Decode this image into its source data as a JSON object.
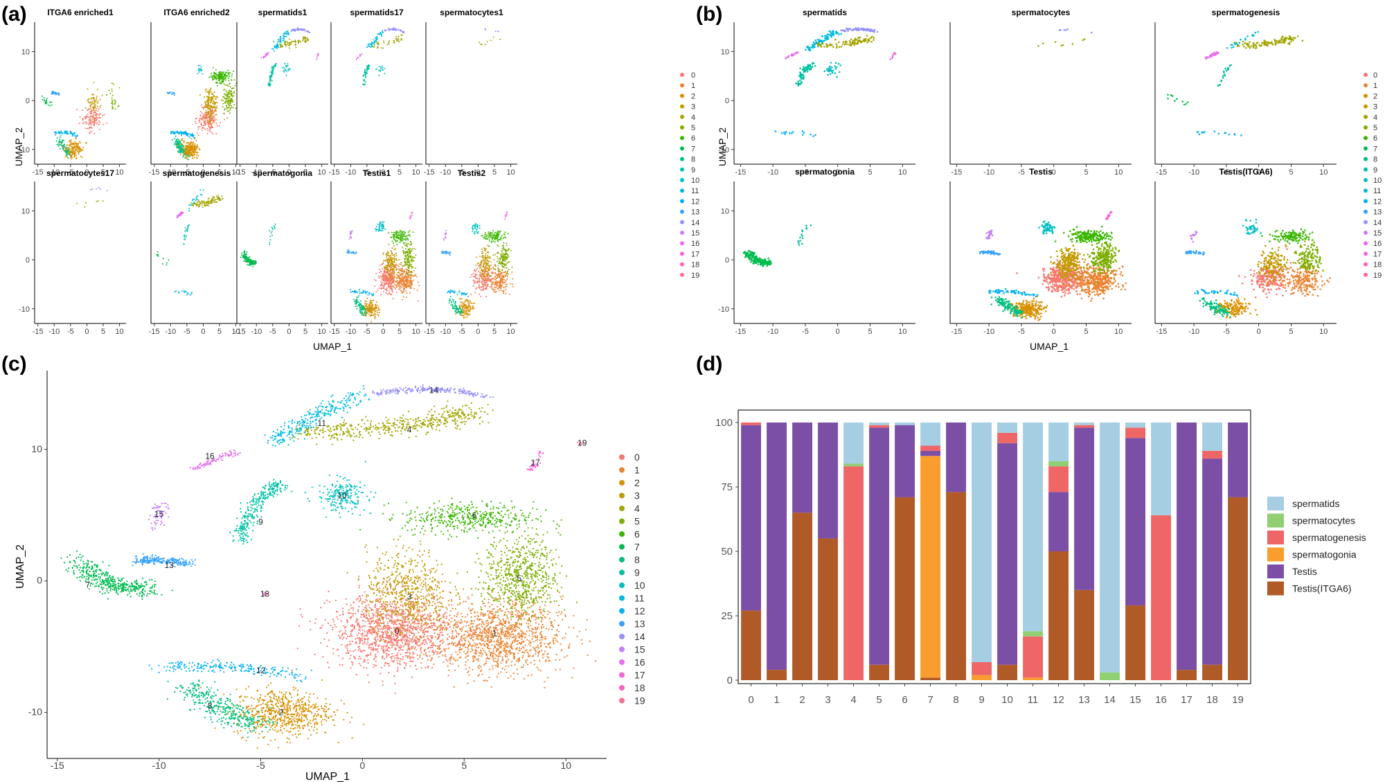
{
  "panels": {
    "a": {
      "label": "(a)",
      "xlabel": "UMAP_1",
      "ylabel": "UMAP_2",
      "facets": [
        "ITGA6 enriched1",
        "ITGA6 enriched2",
        "spermatids1",
        "spermatids17",
        "spermatocytes1",
        "spermatocytes17",
        "spermatogenesis",
        "spermatogonia",
        "Testis1",
        "Testis2"
      ]
    },
    "b": {
      "label": "(b)",
      "xlabel": "UMAP_1",
      "ylabel": "UMAP_2",
      "facets": [
        "spermatids",
        "spermatocytes",
        "spermatogenesis",
        "spermatogonia",
        "Testis",
        "Testis(ITGA6)"
      ]
    },
    "c": {
      "label": "(c)",
      "xlabel": "UMAP_1",
      "ylabel": "UMAP_2"
    },
    "d": {
      "label": "(d)"
    }
  },
  "umap_axes": {
    "x_ticks": [
      "-15",
      "-10",
      "-5",
      "0",
      "5",
      "10"
    ],
    "x_tick_values": [
      -15,
      -10,
      -5,
      0,
      5,
      10
    ],
    "y_ticks_small": [
      "10",
      "0",
      "-10"
    ],
    "y_tick_values_small": [
      10,
      0,
      -10
    ],
    "y_ticks_c": [
      "10",
      "0",
      "-10"
    ],
    "xlim": [
      -16,
      12
    ],
    "ylim": [
      -13,
      16
    ]
  },
  "clusters": {
    "ids": [
      "0",
      "1",
      "2",
      "3",
      "4",
      "5",
      "6",
      "7",
      "8",
      "9",
      "10",
      "11",
      "12",
      "13",
      "14",
      "15",
      "16",
      "17",
      "18",
      "19"
    ],
    "colors": [
      "#F8766D",
      "#EA8331",
      "#D89000",
      "#C09B00",
      "#A3A500",
      "#7CAE00",
      "#39B600",
      "#00BB4E",
      "#00BF7D",
      "#00C1A3",
      "#00BFC4",
      "#00BAE0",
      "#00B0F6",
      "#35A2FF",
      "#9590FF",
      "#C77CFF",
      "#E76BF3",
      "#FA62DB",
      "#FF62BC",
      "#FF6C91"
    ],
    "centers": [
      {
        "id": "0",
        "x": 1.7,
        "y": -3.8
      },
      {
        "id": "1",
        "x": 6.5,
        "y": -4.0
      },
      {
        "id": "2",
        "x": -4.0,
        "y": -10.0
      },
      {
        "id": "3",
        "x": 2.3,
        "y": -1.2
      },
      {
        "id": "4",
        "x": 2.3,
        "y": 11.5
      },
      {
        "id": "5",
        "x": 7.7,
        "y": 0.2
      },
      {
        "id": "6",
        "x": 5.5,
        "y": 5.0
      },
      {
        "id": "7",
        "x": -13.5,
        "y": -0.3
      },
      {
        "id": "8",
        "x": -7.5,
        "y": -9.5
      },
      {
        "id": "9",
        "x": -5.0,
        "y": 4.5
      },
      {
        "id": "10",
        "x": -1.0,
        "y": 6.5
      },
      {
        "id": "11",
        "x": -2.0,
        "y": 12.0
      },
      {
        "id": "12",
        "x": -5.0,
        "y": -6.8
      },
      {
        "id": "13",
        "x": -9.5,
        "y": 1.2
      },
      {
        "id": "14",
        "x": 3.5,
        "y": 14.5
      },
      {
        "id": "15",
        "x": -10.0,
        "y": 5.1
      },
      {
        "id": "16",
        "x": -7.5,
        "y": 9.5
      },
      {
        "id": "17",
        "x": 8.5,
        "y": 9.0
      },
      {
        "id": "18",
        "x": -4.8,
        "y": -1.0
      },
      {
        "id": "19",
        "x": 10.8,
        "y": 10.5
      }
    ]
  },
  "chart_data": [
    {
      "type": "scatter",
      "panel": "c",
      "title": "",
      "xlabel": "UMAP_1",
      "ylabel": "UMAP_2",
      "xlim": [
        -15.5,
        12
      ],
      "ylim": [
        -13.5,
        16
      ],
      "legend": [
        "0",
        "1",
        "2",
        "3",
        "4",
        "5",
        "6",
        "7",
        "8",
        "9",
        "10",
        "11",
        "12",
        "13",
        "14",
        "15",
        "16",
        "17",
        "18",
        "19"
      ],
      "note": "UMAP embedding colored by cluster; cluster centers listed in clusters.centers"
    },
    {
      "type": "bar",
      "panel": "d",
      "stacked": true,
      "categories": [
        "0",
        "1",
        "2",
        "3",
        "4",
        "5",
        "6",
        "7",
        "8",
        "9",
        "10",
        "11",
        "12",
        "13",
        "14",
        "15",
        "16",
        "17",
        "18",
        "19"
      ],
      "ylim": [
        0,
        100
      ],
      "yticks": [
        "0",
        "25",
        "50",
        "75",
        "100"
      ],
      "series": [
        {
          "name": "Testis(ITGA6)",
          "color": "#B05A28",
          "values": [
            27,
            4,
            65,
            55,
            0,
            6,
            71,
            1,
            73,
            0,
            6,
            0,
            50,
            35,
            0,
            29,
            0,
            4,
            6,
            71
          ]
        },
        {
          "name": "spermatogonia",
          "color": "#F99D2E",
          "values": [
            0,
            0,
            0,
            0,
            0,
            0,
            0,
            86,
            0,
            2,
            0,
            1,
            0,
            0,
            0,
            0,
            0,
            0,
            0,
            0
          ]
        },
        {
          "name": "Testis",
          "color": "#7B4FA6",
          "values": [
            72,
            96,
            35,
            45,
            0,
            92,
            28,
            2,
            27,
            0,
            86,
            0,
            23,
            63,
            0,
            65,
            0,
            96,
            80,
            29
          ]
        },
        {
          "name": "spermatogenesis",
          "color": "#EE6666",
          "values": [
            1,
            0,
            0,
            0,
            83,
            1,
            0,
            2,
            0,
            5,
            4,
            16,
            10,
            1,
            0,
            4,
            64,
            0,
            3,
            0
          ]
        },
        {
          "name": "spermatocytes",
          "color": "#90CF72",
          "values": [
            0,
            0,
            0,
            0,
            1,
            0,
            0,
            0,
            0,
            0,
            0,
            2,
            2,
            0,
            3,
            0,
            0,
            0,
            0,
            0
          ]
        },
        {
          "name": "spermatids",
          "color": "#A6CEE3",
          "values": [
            0,
            0,
            0,
            0,
            16,
            1,
            1,
            9,
            0,
            93,
            4,
            81,
            15,
            1,
            97,
            2,
            36,
            0,
            11,
            0
          ]
        }
      ],
      "legend_order": [
        "spermatids",
        "spermatocytes",
        "spermatogenesis",
        "spermatogonia",
        "Testis",
        "Testis(ITGA6)"
      ],
      "legend_position": "right"
    }
  ]
}
